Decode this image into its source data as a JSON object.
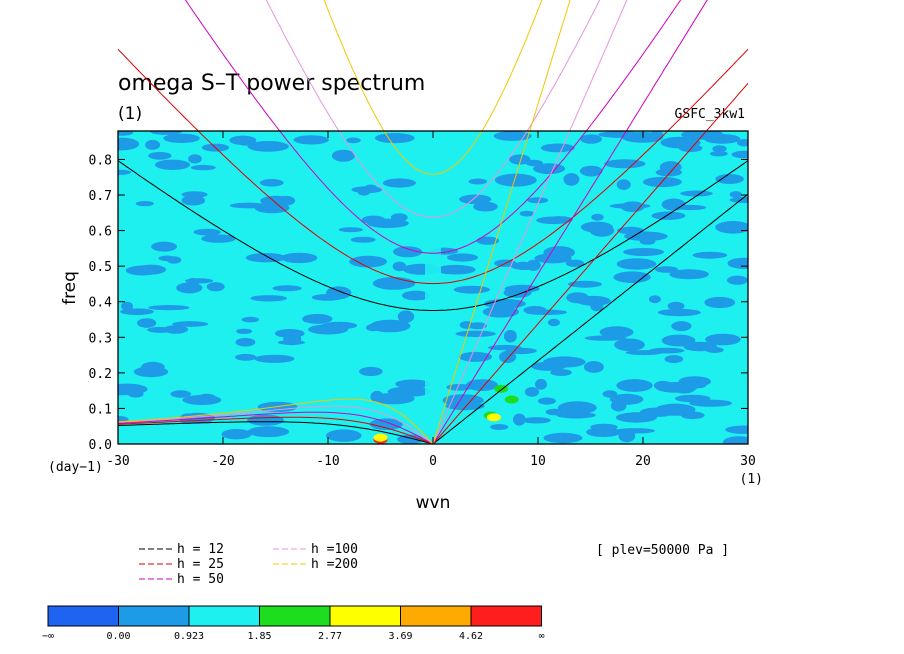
{
  "chart_data": {
    "type": "heatmap",
    "title": "omega S–T power spectrum",
    "subtitle": "(1)",
    "model_label": "GSFC_3kw1",
    "xlabel": "wvn",
    "ylabel": "freq",
    "x_unit_label": "(1)",
    "y_unit_label": "(day−1)",
    "xlim": [
      -30,
      30
    ],
    "ylim": [
      0,
      0.88
    ],
    "xticks": [
      -30,
      -20,
      -10,
      0,
      10,
      20,
      30
    ],
    "yticks": [
      0.0,
      0.1,
      0.2,
      0.3,
      0.4,
      0.5,
      0.6,
      0.7,
      0.8
    ],
    "ytick_labels": [
      "0.0",
      "0.1",
      "0.2",
      "0.3",
      "0.4",
      "0.5",
      "0.6",
      "0.7",
      "0.8"
    ],
    "background_level": "0.923 – 1.85",
    "highlights": [
      {
        "level": "4.62 – ∞",
        "wvn": -5,
        "freq": 0.012
      },
      {
        "level": "2.77 – 3.69",
        "wvn": -5,
        "freq": 0.018
      },
      {
        "level": "1.85 – 2.77",
        "wvn": 5.5,
        "freq": 0.08
      },
      {
        "level": "2.77 – 3.69",
        "wvn": 5.8,
        "freq": 0.075
      },
      {
        "level": "1.85 – 2.77",
        "wvn": 6.5,
        "freq": 0.155
      },
      {
        "level": "1.85 – 2.77",
        "wvn": 7.5,
        "freq": 0.125
      }
    ],
    "dispersion_curves": [
      {
        "name": "h = 12",
        "h": 12,
        "color": "#000000"
      },
      {
        "name": "h = 25",
        "h": 25,
        "color": "#e00000"
      },
      {
        "name": "h = 50",
        "h": 50,
        "color": "#d000c0"
      },
      {
        "name": "h =100",
        "h": 100,
        "color": "#e496dc"
      },
      {
        "name": "h =200",
        "h": 200,
        "color": "#f0c800"
      }
    ],
    "annotation": "[ plev=50000 Pa ]",
    "colorbar": {
      "labels": [
        "−∞",
        "0.00",
        "0.923",
        "1.85",
        "2.77",
        "3.69",
        "4.62",
        "∞"
      ],
      "colors": [
        "#1e64f0",
        "#1e9be6",
        "#1ef0f0",
        "#1edc1e",
        "#ffff00",
        "#ffaa00",
        "#ff1e1e"
      ]
    }
  }
}
